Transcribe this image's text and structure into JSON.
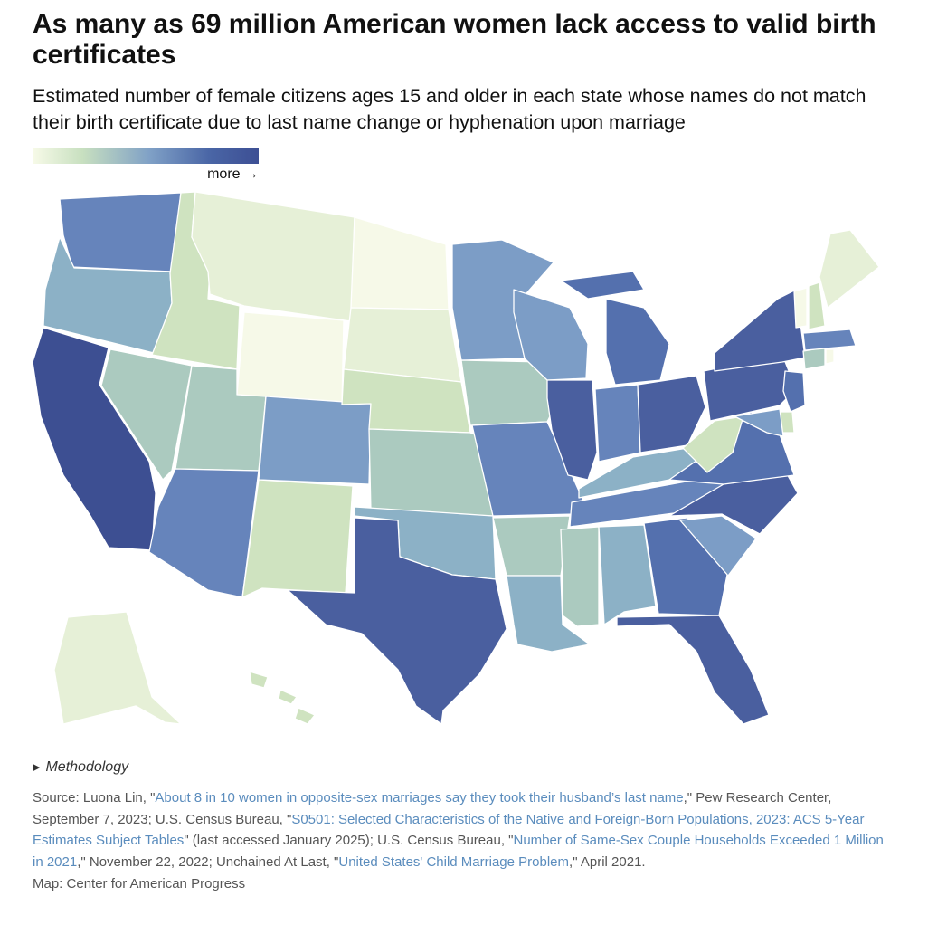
{
  "header": {
    "title": "As many as 69 million American women lack access to valid birth certificates",
    "subtitle": "Estimated number of female citizens ages 15 and older in each state whose names do not match their birth certificate due to last name change or hyphenation upon marriage"
  },
  "legend": {
    "more_label": "more →"
  },
  "palette": {
    "level1": "#f6f9e8",
    "level2": "#e6f0d7",
    "level3": "#cfe3c0",
    "level4": "#abcabf",
    "level5": "#8cb1c6",
    "level6": "#7c9dc6",
    "level7": "#6684bb",
    "level8": "#5470ae",
    "level9": "#4a5f9f",
    "level10": "#3d4f92"
  },
  "methodology": {
    "label": "Methodology"
  },
  "source": {
    "prefix": "Source: Luona Lin, \"",
    "link1": "About 8 in 10 women in opposite-sex marriages say they took their husband’s last name",
    "mid1": ",\" Pew Research Center, September 7, 2023; U.S. Census Bureau, \"",
    "link2": "S0501: Selected Characteristics of the Native and Foreign-Born Populations, 2023: ACS 5-Year Estimates Subject Tables",
    "mid2": "\" (last accessed January 2025); U.S. Census Bureau, \"",
    "link3": "Number of Same-Sex Couple Households Exceeded 1 Million in 2021",
    "mid3": ",\" November 22, 2022; Unchained At Last, \"",
    "link4": "United States' Child Marriage Problem",
    "suffix": ",\" April 2021."
  },
  "credit": "Map: Center for American Progress"
}
